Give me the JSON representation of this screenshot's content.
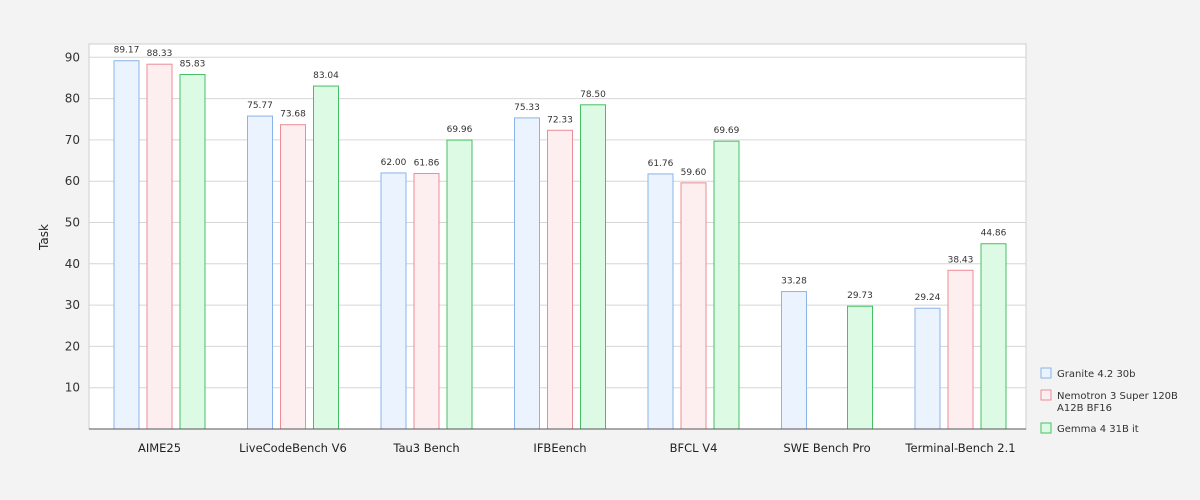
{
  "chart_data": {
    "type": "bar",
    "ylabel": "Task",
    "xlabel": "",
    "ylim": [
      0,
      100
    ],
    "yticks": [
      10,
      20,
      30,
      40,
      50,
      60,
      70,
      80,
      90
    ],
    "grid": true,
    "legend_position": "right",
    "categories": [
      "AIME25",
      "LiveCodeBench V6",
      "Tau3 Bench",
      "IFBEench",
      "BFCL V4",
      "SWE Bench Pro",
      "Terminal-Bench 2.1"
    ],
    "series": [
      {
        "name": "Granite 4.2 30b",
        "fill": "#eaf3fe",
        "stroke": "#8ab4ea",
        "values": [
          89.17,
          75.77,
          62.0,
          75.33,
          61.76,
          33.28,
          29.24
        ],
        "labels": [
          "89.17",
          "75.77",
          "62.00",
          "75.33",
          "61.76",
          "33.28",
          "29.24"
        ]
      },
      {
        "name": "Nemotron 3 Super 120B A12B BF16",
        "name_lines": [
          "Nemotron 3 Super 120B",
          "A12B BF16"
        ],
        "fill": "#fdeef0",
        "stroke": "#ec8c96",
        "values": [
          88.33,
          73.68,
          61.86,
          72.33,
          59.6,
          null,
          38.43
        ],
        "labels": [
          "88.33",
          "73.68",
          "61.86",
          "72.33",
          "59.60",
          null,
          "38.43"
        ]
      },
      {
        "name": "Gemma 4 31B it",
        "fill": "#ddfae5",
        "stroke": "#45c066",
        "values": [
          85.83,
          83.04,
          69.96,
          78.5,
          69.69,
          29.73,
          44.86
        ],
        "labels": [
          "85.83",
          "83.04",
          "69.96",
          "78.50",
          "69.69",
          "29.73",
          "44.86"
        ]
      }
    ]
  }
}
